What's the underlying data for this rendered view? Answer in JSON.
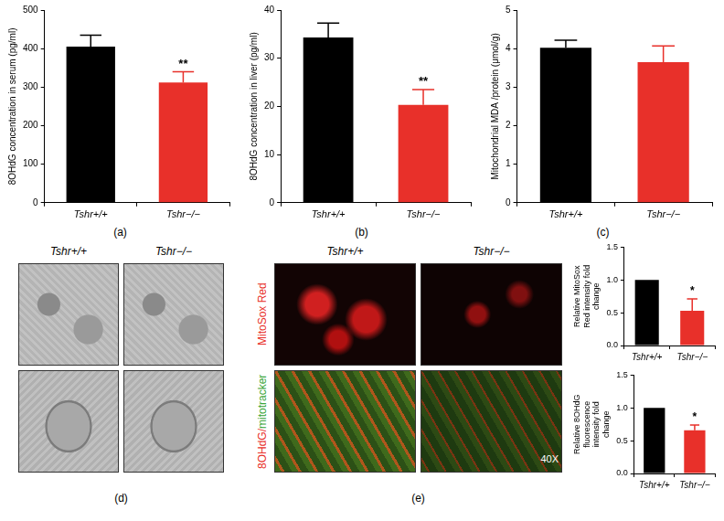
{
  "chart_data": [
    {
      "type": "bar",
      "panel_label": "(a)",
      "y_label": "8OHdG concentration in serum (pg/ml)",
      "categories": [
        "Tshr+/+",
        "Tshr−/−"
      ],
      "values": [
        405,
        312
      ],
      "errors": [
        30,
        28
      ],
      "annotations": [
        null,
        "**"
      ],
      "colors": [
        "#000000",
        "#e8302a"
      ],
      "ylim": [
        0,
        500
      ],
      "yticks": [
        0,
        100,
        200,
        300,
        400,
        500
      ],
      "grid": false
    },
    {
      "type": "bar",
      "panel_label": "(b)",
      "y_label": "8OHdG concentration in liver (pg/ml)",
      "categories": [
        "Tshr+/+",
        "Tshr−/−"
      ],
      "values": [
        34.3,
        20.3
      ],
      "errors": [
        3,
        3.2
      ],
      "annotations": [
        null,
        "**"
      ],
      "colors": [
        "#000000",
        "#e8302a"
      ],
      "ylim": [
        0,
        40
      ],
      "yticks": [
        0,
        10,
        20,
        30,
        40
      ],
      "grid": false
    },
    {
      "type": "bar",
      "panel_label": "(c)",
      "y_label": "Mitochondrial MDA /protein (μmol/g)",
      "categories": [
        "Tshr+/+",
        "Tshr−/−"
      ],
      "values": [
        4.02,
        3.65
      ],
      "errors": [
        0.2,
        0.42
      ],
      "colors": [
        "#000000",
        "#e8302a"
      ],
      "ylim": [
        0,
        5
      ],
      "yticks": [
        0,
        1,
        2,
        3,
        4,
        5
      ],
      "grid": false
    },
    {
      "type": "bar",
      "y_label": "Relative MitoSox Red intensity fold change",
      "categories": [
        "Tshr+/+",
        "Tshr−/−"
      ],
      "values": [
        1.0,
        0.53
      ],
      "errors": [
        null,
        0.18
      ],
      "annotations": [
        null,
        "*"
      ],
      "colors": [
        "#000000",
        "#e8302a"
      ],
      "ylim": [
        0,
        1.5
      ],
      "yticks": [
        {
          "value": 0,
          "label": "0.0"
        },
        0.5,
        {
          "value": 1,
          "label": "1.0"
        },
        1.5
      ],
      "grid": false
    },
    {
      "type": "bar",
      "y_label": "Relative 8OHdG fluorescence intensity fold change",
      "categories": [
        "Tshr+/+",
        "Tshr−/−"
      ],
      "values": [
        1.0,
        0.66
      ],
      "errors": [
        null,
        0.08
      ],
      "annotations": [
        null,
        "*"
      ],
      "colors": [
        "#000000",
        "#e8302a"
      ],
      "ylim": [
        0,
        1.5
      ],
      "yticks": [
        {
          "value": 0,
          "label": "0.0"
        },
        0.5,
        {
          "value": 1,
          "label": "1.0"
        },
        1.5
      ],
      "grid": false
    }
  ],
  "images": {
    "d": {
      "panel_label": "(d)",
      "columns": [
        "Tshr+/+",
        "Tshr−/−"
      ]
    },
    "e": {
      "panel_label": "(e)",
      "columns": [
        "Tshr+/+",
        "Tshr−/−"
      ],
      "row_labels": [
        "MitoSox Red",
        "8OHdG/mitotracker"
      ],
      "magnification": "40X"
    }
  }
}
